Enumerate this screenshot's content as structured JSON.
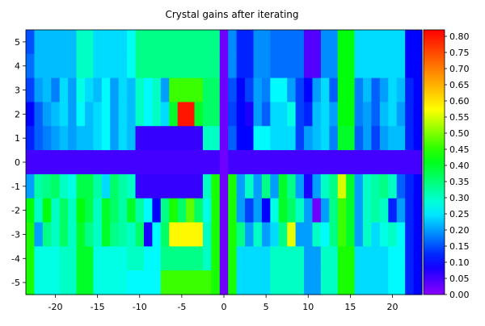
{
  "chart_data": {
    "type": "heatmap",
    "title": "Crystal gains after iterating",
    "xlabel": "",
    "ylabel": "",
    "xlim": [
      -23.5,
      23.5
    ],
    "ylim": [
      -5.5,
      5.5
    ],
    "x_ticks": [
      -20,
      -15,
      -10,
      -5,
      0,
      5,
      10,
      15,
      20
    ],
    "y_ticks": [
      5,
      4,
      3,
      2,
      1,
      0,
      -1,
      -2,
      -3,
      -4,
      -5
    ],
    "colorbar": {
      "min": 0.0,
      "max": 0.82,
      "ticks": [
        "0.80",
        "0.75",
        "0.70",
        "0.65",
        "0.60",
        "0.55",
        "0.50",
        "0.45",
        "0.40",
        "0.35",
        "0.30",
        "0.25",
        "0.20",
        "0.15",
        "0.10",
        "0.05",
        "0.00"
      ],
      "palette": "rainbow"
    },
    "grid": false,
    "x": [
      -23,
      -22,
      -21,
      -20,
      -19,
      -18,
      -17,
      -16,
      -15,
      -14,
      -13,
      -12,
      -11,
      -10,
      -9,
      -8,
      -7,
      -6,
      -5,
      -4,
      -3,
      -2,
      -1,
      0,
      1,
      2,
      3,
      4,
      5,
      6,
      7,
      8,
      9,
      10,
      11,
      12,
      13,
      14,
      15,
      16,
      17,
      18,
      19,
      20,
      21,
      22,
      23
    ],
    "y": [
      5,
      4,
      3,
      2,
      1,
      0,
      -1,
      -2,
      -3,
      -4,
      -5
    ],
    "z": [
      [
        0.15,
        0.22,
        0.22,
        0.22,
        0.22,
        0.22,
        0.3,
        0.3,
        0.24,
        0.24,
        0.24,
        0.24,
        0.27,
        0.34,
        0.34,
        0.34,
        0.34,
        0.34,
        0.34,
        0.34,
        0.34,
        0.34,
        0.34,
        0.02,
        0.19,
        0.12,
        0.12,
        0.19,
        0.19,
        0.17,
        0.17,
        0.17,
        0.17,
        0.04,
        0.04,
        0.19,
        0.19,
        0.42,
        0.42,
        0.24,
        0.24,
        0.24,
        0.24,
        0.24,
        0.24,
        0.1,
        0.1
      ],
      [
        0.17,
        0.22,
        0.22,
        0.22,
        0.22,
        0.22,
        0.3,
        0.3,
        0.24,
        0.24,
        0.24,
        0.24,
        0.27,
        0.34,
        0.34,
        0.34,
        0.34,
        0.34,
        0.34,
        0.34,
        0.34,
        0.34,
        0.34,
        0.02,
        0.19,
        0.12,
        0.12,
        0.19,
        0.19,
        0.17,
        0.17,
        0.17,
        0.17,
        0.04,
        0.04,
        0.19,
        0.19,
        0.42,
        0.42,
        0.24,
        0.24,
        0.24,
        0.24,
        0.24,
        0.24,
        0.1,
        0.1
      ],
      [
        0.14,
        0.2,
        0.22,
        0.18,
        0.24,
        0.2,
        0.28,
        0.24,
        0.22,
        0.26,
        0.2,
        0.24,
        0.22,
        0.3,
        0.26,
        0.3,
        0.2,
        0.46,
        0.46,
        0.46,
        0.46,
        0.36,
        0.36,
        0.02,
        0.15,
        0.1,
        0.14,
        0.2,
        0.18,
        0.26,
        0.26,
        0.2,
        0.14,
        0.1,
        0.2,
        0.24,
        0.16,
        0.42,
        0.42,
        0.18,
        0.22,
        0.16,
        0.2,
        0.24,
        0.22,
        0.12,
        0.1
      ],
      [
        0.1,
        0.16,
        0.2,
        0.22,
        0.24,
        0.2,
        0.26,
        0.22,
        0.24,
        0.26,
        0.2,
        0.24,
        0.22,
        0.3,
        0.26,
        0.3,
        0.24,
        0.4,
        0.8,
        0.8,
        0.4,
        0.36,
        0.36,
        0.02,
        0.14,
        0.1,
        0.08,
        0.2,
        0.16,
        0.24,
        0.24,
        0.28,
        0.14,
        0.12,
        0.22,
        0.24,
        0.2,
        0.42,
        0.42,
        0.18,
        0.2,
        0.16,
        0.22,
        0.24,
        0.2,
        0.12,
        0.1
      ],
      [
        0.12,
        0.16,
        0.18,
        0.2,
        0.22,
        0.2,
        0.22,
        0.22,
        0.24,
        0.26,
        0.2,
        0.24,
        0.22,
        0.06,
        0.06,
        0.06,
        0.06,
        0.06,
        0.06,
        0.06,
        0.06,
        0.3,
        0.3,
        0.02,
        0.16,
        0.1,
        0.1,
        0.26,
        0.26,
        0.24,
        0.24,
        0.24,
        0.14,
        0.2,
        0.22,
        0.24,
        0.18,
        0.4,
        0.4,
        0.16,
        0.2,
        0.14,
        0.2,
        0.22,
        0.22,
        0.12,
        0.1
      ],
      [
        0.05,
        0.05,
        0.05,
        0.05,
        0.05,
        0.05,
        0.05,
        0.05,
        0.05,
        0.05,
        0.05,
        0.05,
        0.05,
        0.05,
        0.05,
        0.05,
        0.05,
        0.05,
        0.05,
        0.05,
        0.05,
        0.05,
        0.05,
        0.02,
        0.05,
        0.05,
        0.05,
        0.05,
        0.05,
        0.05,
        0.05,
        0.05,
        0.05,
        0.05,
        0.05,
        0.05,
        0.05,
        0.05,
        0.05,
        0.05,
        0.05,
        0.05,
        0.05,
        0.05,
        0.05,
        0.05,
        0.05
      ],
      [
        0.2,
        0.32,
        0.34,
        0.36,
        0.3,
        0.28,
        0.38,
        0.38,
        0.32,
        0.24,
        0.36,
        0.32,
        0.3,
        0.06,
        0.06,
        0.06,
        0.06,
        0.06,
        0.06,
        0.06,
        0.06,
        0.3,
        0.44,
        0.02,
        0.44,
        0.2,
        0.3,
        0.2,
        0.34,
        0.2,
        0.4,
        0.34,
        0.2,
        0.08,
        0.2,
        0.3,
        0.34,
        0.55,
        0.4,
        0.2,
        0.3,
        0.32,
        0.34,
        0.3,
        0.16,
        0.12,
        0.1
      ],
      [
        0.42,
        0.3,
        0.42,
        0.3,
        0.36,
        0.3,
        0.42,
        0.38,
        0.3,
        0.4,
        0.36,
        0.32,
        0.4,
        0.32,
        0.26,
        0.1,
        0.34,
        0.44,
        0.36,
        0.48,
        0.36,
        0.28,
        0.44,
        0.02,
        0.44,
        0.2,
        0.14,
        0.2,
        0.1,
        0.28,
        0.4,
        0.36,
        0.3,
        0.2,
        0.02,
        0.2,
        0.34,
        0.46,
        0.4,
        0.2,
        0.3,
        0.32,
        0.3,
        0.12,
        0.2,
        0.12,
        0.1
      ],
      [
        0.44,
        0.2,
        0.34,
        0.3,
        0.36,
        0.3,
        0.4,
        0.34,
        0.3,
        0.4,
        0.34,
        0.32,
        0.3,
        0.36,
        0.08,
        0.26,
        0.36,
        0.58,
        0.58,
        0.58,
        0.58,
        0.3,
        0.44,
        0.02,
        0.44,
        0.34,
        0.2,
        0.3,
        0.2,
        0.24,
        0.34,
        0.56,
        0.2,
        0.2,
        0.3,
        0.26,
        0.34,
        0.46,
        0.4,
        0.2,
        0.3,
        0.24,
        0.28,
        0.3,
        0.26,
        0.12,
        0.1
      ],
      [
        0.44,
        0.28,
        0.28,
        0.28,
        0.3,
        0.3,
        0.4,
        0.4,
        0.28,
        0.28,
        0.28,
        0.28,
        0.3,
        0.3,
        0.26,
        0.26,
        0.34,
        0.34,
        0.34,
        0.34,
        0.34,
        0.3,
        0.44,
        0.02,
        0.44,
        0.24,
        0.24,
        0.24,
        0.24,
        0.3,
        0.3,
        0.3,
        0.3,
        0.2,
        0.2,
        0.3,
        0.3,
        0.44,
        0.44,
        0.24,
        0.24,
        0.24,
        0.24,
        0.26,
        0.26,
        0.12,
        0.1
      ],
      [
        0.44,
        0.28,
        0.28,
        0.28,
        0.3,
        0.3,
        0.4,
        0.4,
        0.28,
        0.28,
        0.28,
        0.28,
        0.26,
        0.26,
        0.26,
        0.26,
        0.46,
        0.46,
        0.46,
        0.46,
        0.46,
        0.46,
        0.44,
        0.02,
        0.44,
        0.24,
        0.24,
        0.24,
        0.24,
        0.3,
        0.3,
        0.3,
        0.3,
        0.2,
        0.2,
        0.3,
        0.3,
        0.44,
        0.44,
        0.24,
        0.24,
        0.24,
        0.24,
        0.26,
        0.26,
        0.12,
        0.1
      ]
    ]
  }
}
